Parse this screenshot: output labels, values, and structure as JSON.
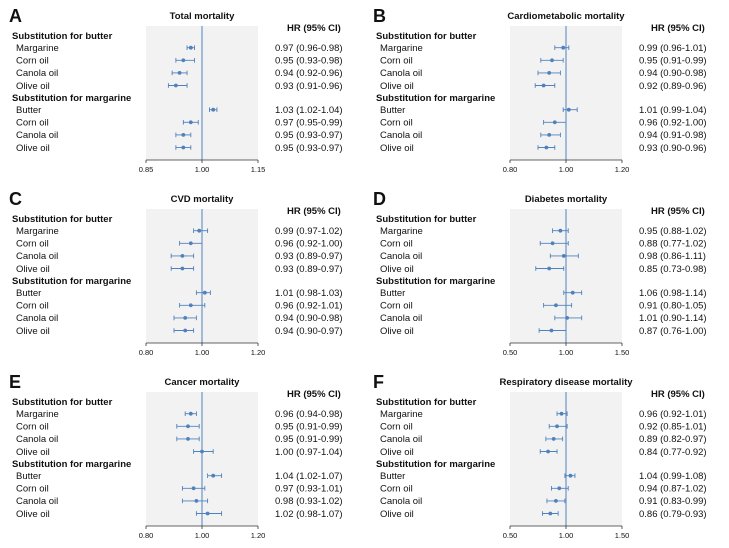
{
  "hr_header": "HR (95% CI)",
  "chart_data": [
    {
      "type": "forest",
      "letter": "A",
      "title": "Total mortality",
      "xlim": [
        0.85,
        1.15
      ],
      "ticks": [
        "0.85",
        "1.00",
        "1.15"
      ],
      "reference": 1.0,
      "groups": [
        {
          "label": "Substitution for butter",
          "rows": [
            {
              "label": "Margarine",
              "hr": 0.97,
              "lo": 0.96,
              "hi": 0.98,
              "text": "0.97 (0.96-0.98)"
            },
            {
              "label": "Corn oil",
              "hr": 0.95,
              "lo": 0.93,
              "hi": 0.98,
              "text": "0.95 (0.93-0.98)"
            },
            {
              "label": "Canola oil",
              "hr": 0.94,
              "lo": 0.92,
              "hi": 0.96,
              "text": "0.94 (0.92-0.96)"
            },
            {
              "label": "Olive oil",
              "hr": 0.93,
              "lo": 0.91,
              "hi": 0.96,
              "text": "0.93 (0.91-0.96)"
            }
          ]
        },
        {
          "label": "Substitution for margarine",
          "rows": [
            {
              "label": "Butter",
              "hr": 1.03,
              "lo": 1.02,
              "hi": 1.04,
              "text": "1.03 (1.02-1.04)"
            },
            {
              "label": "Corn oil",
              "hr": 0.97,
              "lo": 0.95,
              "hi": 0.99,
              "text": "0.97 (0.95-0.99)"
            },
            {
              "label": "Canola oil",
              "hr": 0.95,
              "lo": 0.93,
              "hi": 0.97,
              "text": "0.95 (0.93-0.97)"
            },
            {
              "label": "Olive oil",
              "hr": 0.95,
              "lo": 0.93,
              "hi": 0.97,
              "text": "0.95 (0.93-0.97)"
            }
          ]
        }
      ]
    },
    {
      "type": "forest",
      "letter": "B",
      "title": "Cardiometabolic mortality",
      "xlim": [
        0.8,
        1.2
      ],
      "ticks": [
        "0.80",
        "1.00",
        "1.20"
      ],
      "reference": 1.0,
      "groups": [
        {
          "label": "Substitution for butter",
          "rows": [
            {
              "label": "Margarine",
              "hr": 0.99,
              "lo": 0.96,
              "hi": 1.01,
              "text": "0.99 (0.96-1.01)"
            },
            {
              "label": "Corn oil",
              "hr": 0.95,
              "lo": 0.91,
              "hi": 0.99,
              "text": "0.95 (0.91-0.99)"
            },
            {
              "label": "Canola oil",
              "hr": 0.94,
              "lo": 0.9,
              "hi": 0.98,
              "text": "0.94 (0.90-0.98)"
            },
            {
              "label": "Olive oil",
              "hr": 0.92,
              "lo": 0.89,
              "hi": 0.96,
              "text": "0.92 (0.89-0.96)"
            }
          ]
        },
        {
          "label": "Substitution for margarine",
          "rows": [
            {
              "label": "Butter",
              "hr": 1.01,
              "lo": 0.99,
              "hi": 1.04,
              "text": "1.01 (0.99-1.04)"
            },
            {
              "label": "Corn oil",
              "hr": 0.96,
              "lo": 0.92,
              "hi": 1.0,
              "text": "0.96 (0.92-1.00)"
            },
            {
              "label": "Canola oil",
              "hr": 0.94,
              "lo": 0.91,
              "hi": 0.98,
              "text": "0.94 (0.91-0.98)"
            },
            {
              "label": "Olive oil",
              "hr": 0.93,
              "lo": 0.9,
              "hi": 0.96,
              "text": "0.93 (0.90-0.96)"
            }
          ]
        }
      ]
    },
    {
      "type": "forest",
      "letter": "C",
      "title": "CVD mortality",
      "xlim": [
        0.8,
        1.2
      ],
      "ticks": [
        "0.80",
        "1.00",
        "1.20"
      ],
      "reference": 1.0,
      "groups": [
        {
          "label": "Substitution for butter",
          "rows": [
            {
              "label": "Margarine",
              "hr": 0.99,
              "lo": 0.97,
              "hi": 1.02,
              "text": "0.99 (0.97-1.02)"
            },
            {
              "label": "Corn oil",
              "hr": 0.96,
              "lo": 0.92,
              "hi": 1.0,
              "text": "0.96 (0.92-1.00)"
            },
            {
              "label": "Canola oil",
              "hr": 0.93,
              "lo": 0.89,
              "hi": 0.97,
              "text": "0.93 (0.89-0.97)"
            },
            {
              "label": "Olive oil",
              "hr": 0.93,
              "lo": 0.89,
              "hi": 0.97,
              "text": "0.93 (0.89-0.97)"
            }
          ]
        },
        {
          "label": "Substitution for margarine",
          "rows": [
            {
              "label": "Butter",
              "hr": 1.01,
              "lo": 0.98,
              "hi": 1.03,
              "text": "1.01 (0.98-1.03)"
            },
            {
              "label": "Corn oil",
              "hr": 0.96,
              "lo": 0.92,
              "hi": 1.01,
              "text": "0.96 (0.92-1.01)"
            },
            {
              "label": "Canola oil",
              "hr": 0.94,
              "lo": 0.9,
              "hi": 0.98,
              "text": "0.94 (0.90-0.98)"
            },
            {
              "label": "Olive oil",
              "hr": 0.94,
              "lo": 0.9,
              "hi": 0.97,
              "text": "0.94 (0.90-0.97)"
            }
          ]
        }
      ]
    },
    {
      "type": "forest",
      "letter": "D",
      "title": "Diabetes mortality",
      "xlim": [
        0.5,
        1.5
      ],
      "ticks": [
        "0.50",
        "1.00",
        "1.50"
      ],
      "reference": 1.0,
      "groups": [
        {
          "label": "Substitution for butter",
          "rows": [
            {
              "label": "Margarine",
              "hr": 0.95,
              "lo": 0.88,
              "hi": 1.02,
              "text": "0.95 (0.88-1.02)"
            },
            {
              "label": "Corn oil",
              "hr": 0.88,
              "lo": 0.77,
              "hi": 1.02,
              "text": "0.88 (0.77-1.02)"
            },
            {
              "label": "Canola oil",
              "hr": 0.98,
              "lo": 0.86,
              "hi": 1.11,
              "text": "0.98 (0.86-1.11)"
            },
            {
              "label": "Olive oil",
              "hr": 0.85,
              "lo": 0.73,
              "hi": 0.98,
              "text": "0.85 (0.73-0.98)"
            }
          ]
        },
        {
          "label": "Substitution for margarine",
          "rows": [
            {
              "label": "Butter",
              "hr": 1.06,
              "lo": 0.98,
              "hi": 1.14,
              "text": "1.06 (0.98-1.14)"
            },
            {
              "label": "Corn oil",
              "hr": 0.91,
              "lo": 0.8,
              "hi": 1.05,
              "text": "0.91 (0.80-1.05)"
            },
            {
              "label": "Canola oil",
              "hr": 1.01,
              "lo": 0.9,
              "hi": 1.14,
              "text": "1.01 (0.90-1.14)"
            },
            {
              "label": "Olive oil",
              "hr": 0.87,
              "lo": 0.76,
              "hi": 1.0,
              "text": "0.87 (0.76-1.00)"
            }
          ]
        }
      ]
    },
    {
      "type": "forest",
      "letter": "E",
      "title": "Cancer mortality",
      "xlim": [
        0.8,
        1.2
      ],
      "ticks": [
        "0.80",
        "1.00",
        "1.20"
      ],
      "reference": 1.0,
      "groups": [
        {
          "label": "Substitution for butter",
          "rows": [
            {
              "label": "Margarine",
              "hr": 0.96,
              "lo": 0.94,
              "hi": 0.98,
              "text": "0.96 (0.94-0.98)"
            },
            {
              "label": "Corn oil",
              "hr": 0.95,
              "lo": 0.91,
              "hi": 0.99,
              "text": "0.95 (0.91-0.99)"
            },
            {
              "label": "Canola oil",
              "hr": 0.95,
              "lo": 0.91,
              "hi": 0.99,
              "text": "0.95 (0.91-0.99)"
            },
            {
              "label": "Olive oil",
              "hr": 1.0,
              "lo": 0.97,
              "hi": 1.04,
              "text": "1.00 (0.97-1.04)"
            }
          ]
        },
        {
          "label": "Substitution for margarine",
          "rows": [
            {
              "label": "Butter",
              "hr": 1.04,
              "lo": 1.02,
              "hi": 1.07,
              "text": "1.04 (1.02-1.07)"
            },
            {
              "label": "Corn oil",
              "hr": 0.97,
              "lo": 0.93,
              "hi": 1.01,
              "text": "0.97 (0.93-1.01)"
            },
            {
              "label": "Canola oil",
              "hr": 0.98,
              "lo": 0.93,
              "hi": 1.02,
              "text": "0.98 (0.93-1.02)"
            },
            {
              "label": "Olive oil",
              "hr": 1.02,
              "lo": 0.98,
              "hi": 1.07,
              "text": "1.02 (0.98-1.07)"
            }
          ]
        }
      ]
    },
    {
      "type": "forest",
      "letter": "F",
      "title": "Respiratory disease mortality",
      "xlim": [
        0.5,
        1.5
      ],
      "ticks": [
        "0.50",
        "1.00",
        "1.50"
      ],
      "reference": 1.0,
      "groups": [
        {
          "label": "Substitution for butter",
          "rows": [
            {
              "label": "Margarine",
              "hr": 0.96,
              "lo": 0.92,
              "hi": 1.01,
              "text": "0.96 (0.92-1.01)"
            },
            {
              "label": "Corn oil",
              "hr": 0.92,
              "lo": 0.85,
              "hi": 1.01,
              "text": "0.92 (0.85-1.01)"
            },
            {
              "label": "Canola oil",
              "hr": 0.89,
              "lo": 0.82,
              "hi": 0.97,
              "text": "0.89 (0.82-0.97)"
            },
            {
              "label": "Olive oil",
              "hr": 0.84,
              "lo": 0.77,
              "hi": 0.92,
              "text": "0.84 (0.77-0.92)"
            }
          ]
        },
        {
          "label": "Substitution for margarine",
          "rows": [
            {
              "label": "Butter",
              "hr": 1.04,
              "lo": 0.99,
              "hi": 1.08,
              "text": "1.04 (0.99-1.08)"
            },
            {
              "label": "Corn oil",
              "hr": 0.94,
              "lo": 0.87,
              "hi": 1.02,
              "text": "0.94 (0.87-1.02)"
            },
            {
              "label": "Canola oil",
              "hr": 0.91,
              "lo": 0.83,
              "hi": 0.99,
              "text": "0.91 (0.83-0.99)"
            },
            {
              "label": "Olive oil",
              "hr": 0.86,
              "lo": 0.79,
              "hi": 0.93,
              "text": "0.86 (0.79-0.93)"
            }
          ]
        }
      ]
    }
  ],
  "colors": {
    "marker": "#4f81bd",
    "plot_bg": "#f2f2f2",
    "reference_line": "#4f81bd",
    "axis": "#333333"
  }
}
